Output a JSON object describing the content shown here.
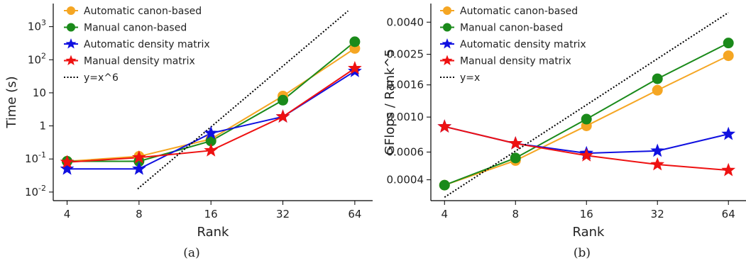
{
  "chart_data": [
    {
      "type": "line",
      "caption": "(a)",
      "xlabel": "Rank",
      "ylabel": "Time (s)",
      "xscale": "log2",
      "yscale": "log10",
      "x_ticks": [
        4,
        8,
        16,
        32,
        64
      ],
      "x_tick_labels": [
        "4",
        "8",
        "16",
        "32",
        "64"
      ],
      "y_tick_values": [
        0.01,
        0.1,
        1,
        10,
        100,
        1000
      ],
      "y_tick_labels": [
        {
          "base": "10",
          "exp": "-2"
        },
        {
          "base": "10",
          "exp": "-1"
        },
        {
          "base": "1",
          "exp": ""
        },
        {
          "base": "10",
          "exp": ""
        },
        {
          "base": "10",
          "exp": "2"
        },
        {
          "base": "10",
          "exp": "3"
        }
      ],
      "xlim": [
        3.5,
        76
      ],
      "ylim": [
        0.0055,
        5000
      ],
      "legend_position": "top-left",
      "series": [
        {
          "name": "Automatic canon-based",
          "color": "#f5a623",
          "marker": "circle",
          "x": [
            4,
            8,
            16,
            32,
            64
          ],
          "y": [
            0.085,
            0.12,
            0.4,
            8.0,
            220
          ]
        },
        {
          "name": "Manual canon-based",
          "color": "#1a8a1a",
          "marker": "circle",
          "x": [
            4,
            8,
            16,
            32,
            64
          ],
          "y": [
            0.085,
            0.085,
            0.35,
            6.0,
            350
          ]
        },
        {
          "name": "Automatic density matrix",
          "color": "#1010e0",
          "marker": "star",
          "x": [
            4,
            8,
            16,
            32,
            64
          ],
          "y": [
            0.05,
            0.05,
            0.6,
            1.9,
            45
          ]
        },
        {
          "name": "Manual density matrix",
          "color": "#ee1111",
          "marker": "star",
          "x": [
            4,
            8,
            16,
            32,
            64
          ],
          "y": [
            0.08,
            0.11,
            0.18,
            1.9,
            55
          ]
        },
        {
          "name": "y=x^6",
          "color": "#000000",
          "marker": "none",
          "dotted": true,
          "x": [
            7.9,
            60
          ],
          "y": [
            0.0125,
            3000
          ]
        }
      ]
    },
    {
      "type": "line",
      "caption": "(b)",
      "xlabel": "Rank",
      "ylabel": "GFlops / Rank^5",
      "xscale": "log2",
      "yscale": "log",
      "x_ticks": [
        4,
        8,
        16,
        32,
        64
      ],
      "x_tick_labels": [
        "4",
        "8",
        "16",
        "32",
        "64"
      ],
      "y_tick_values": [
        0.0004,
        0.0006,
        0.001,
        0.0016,
        0.0025,
        0.004
      ],
      "y_tick_labels": [
        {
          "base": "0.0004",
          "exp": ""
        },
        {
          "base": "0.0006",
          "exp": ""
        },
        {
          "base": "0.0010",
          "exp": ""
        },
        {
          "base": "0.0016",
          "exp": ""
        },
        {
          "base": "0.0025",
          "exp": ""
        },
        {
          "base": "0.0040",
          "exp": ""
        }
      ],
      "xlim": [
        3.5,
        76
      ],
      "ylim": [
        0.000295,
        0.00525
      ],
      "legend_position": "top-left",
      "series": [
        {
          "name": "Automatic canon-based",
          "color": "#f5a623",
          "marker": "circle",
          "x": [
            4,
            8,
            16,
            32,
            64
          ],
          "y": [
            0.00037,
            0.00053,
            0.00088,
            0.00148,
            0.00245
          ]
        },
        {
          "name": "Manual canon-based",
          "color": "#1a8a1a",
          "marker": "circle",
          "x": [
            4,
            8,
            16,
            32,
            64
          ],
          "y": [
            0.00037,
            0.00055,
            0.00097,
            0.00175,
            0.00295
          ]
        },
        {
          "name": "Automatic density matrix",
          "color": "#1010e0",
          "marker": "star",
          "x": [
            4,
            8,
            16,
            32,
            64
          ],
          "y": [
            0.00087,
            0.00068,
            0.00059,
            0.00061,
            0.00078
          ]
        },
        {
          "name": "Manual density matrix",
          "color": "#ee1111",
          "marker": "star",
          "x": [
            4,
            8,
            16,
            32,
            64
          ],
          "y": [
            0.00087,
            0.00068,
            0.00057,
            0.0005,
            0.00046
          ]
        },
        {
          "name": "y=x",
          "color": "#000000",
          "marker": "none",
          "dotted": true,
          "x": [
            4,
            64
          ],
          "y": [
            0.00031,
            0.0046
          ]
        }
      ]
    }
  ]
}
